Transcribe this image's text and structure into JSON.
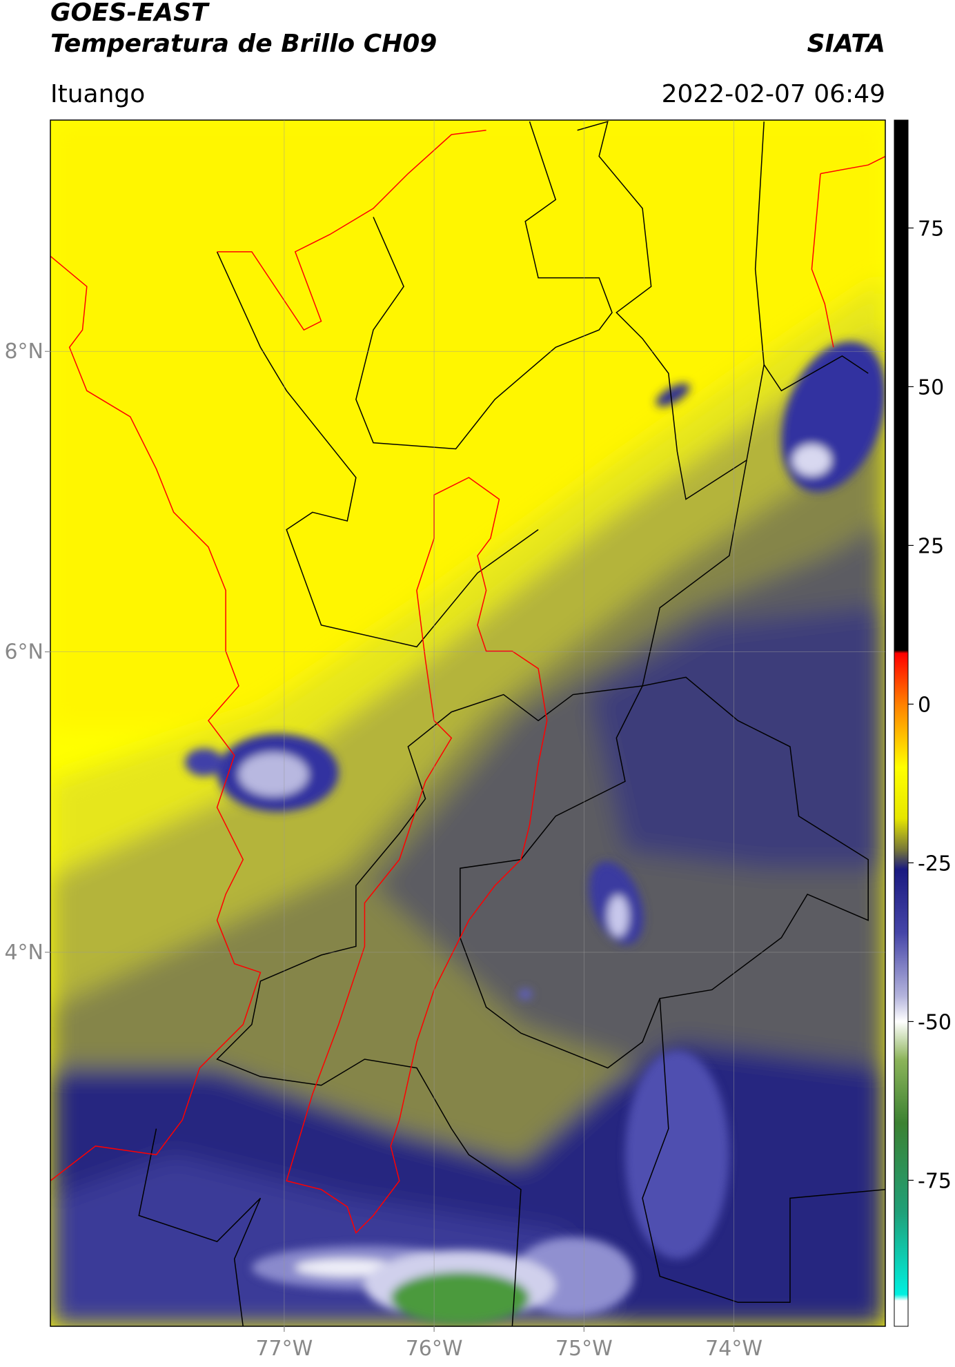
{
  "header": {
    "title": "GOES-EAST",
    "subtitle": "Temperatura de Brillo CH09",
    "institution": "SIATA",
    "location": "Ituango",
    "datetime": "2022-02-07 06:49"
  },
  "map": {
    "lat_lim": [
      1.51,
      9.54
    ],
    "lon_lim": [
      -78.56,
      -72.99
    ],
    "lat_ticks": [
      {
        "value": 8,
        "label": "8°N"
      },
      {
        "value": 6,
        "label": "6°N"
      },
      {
        "value": 4,
        "label": "4°N"
      }
    ],
    "lon_ticks": [
      {
        "value": -77,
        "label": "77°W"
      },
      {
        "value": -76,
        "label": "76°W"
      },
      {
        "value": -75,
        "label": "75°W"
      },
      {
        "value": -74,
        "label": "74°W"
      }
    ],
    "grid": true
  },
  "colorbar": {
    "lim": [
      -98,
      92
    ],
    "ticks": [
      75,
      50,
      25,
      0,
      -25,
      -50,
      -75
    ],
    "stops": [
      {
        "value": 92,
        "color": "#000000"
      },
      {
        "value": 8.5,
        "color": "#000000"
      },
      {
        "value": 8,
        "color": "#ff0000"
      },
      {
        "value": 0,
        "color": "#ff8000"
      },
      {
        "value": -10,
        "color": "#ffff00"
      },
      {
        "value": -18,
        "color": "#e6e600"
      },
      {
        "value": -23,
        "color": "#75753a"
      },
      {
        "value": -26,
        "color": "#1a1a80"
      },
      {
        "value": -36,
        "color": "#4545a8"
      },
      {
        "value": -46,
        "color": "#b4b4dc"
      },
      {
        "value": -50,
        "color": "#ffffff"
      },
      {
        "value": -56,
        "color": "#8cb45a"
      },
      {
        "value": -66,
        "color": "#3c8232"
      },
      {
        "value": -80,
        "color": "#20a078"
      },
      {
        "value": -93,
        "color": "#00f0e0"
      },
      {
        "value": -94,
        "color": "#ffffff"
      },
      {
        "value": -98,
        "color": "#ffffff"
      }
    ]
  }
}
